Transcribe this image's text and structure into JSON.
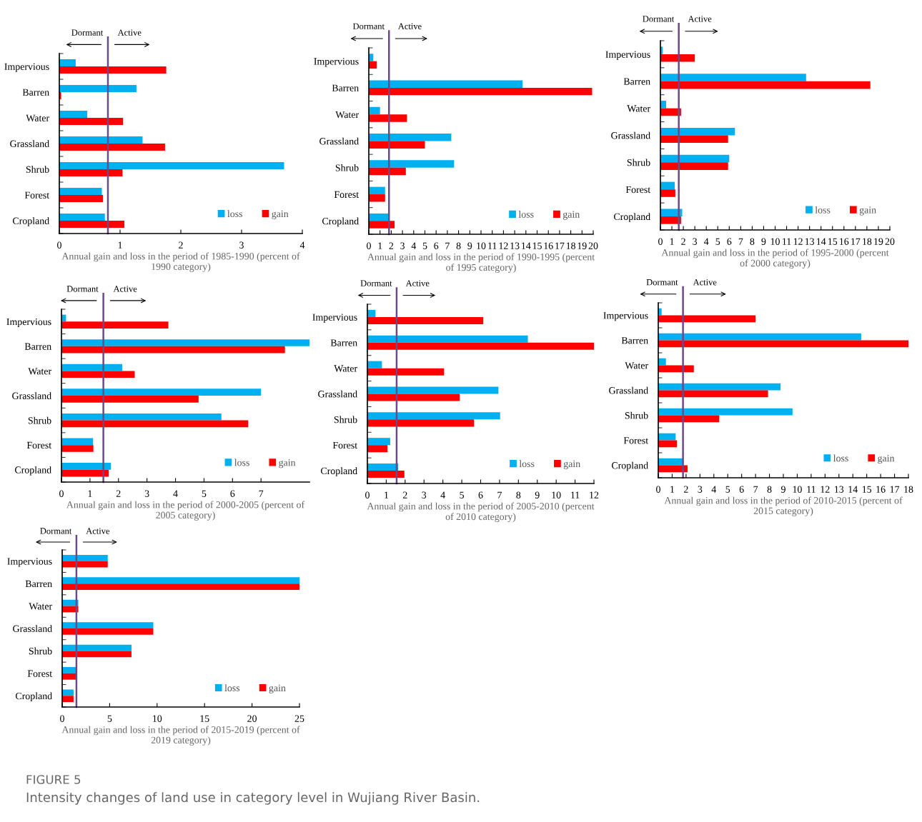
{
  "chart_data": [
    {
      "type": "bar",
      "orientation": "horizontal",
      "categories": [
        "Impervious",
        "Barren",
        "Water",
        "Grassland",
        "Shrub",
        "Forest",
        "Cropland"
      ],
      "series": [
        {
          "name": "loss",
          "color": "#00b0f0",
          "values": [
            0.27,
            1.27,
            0.46,
            1.37,
            3.7,
            0.7,
            0.75
          ]
        },
        {
          "name": "gain",
          "color": "#ff0000",
          "values": [
            1.76,
            0.03,
            1.05,
            1.74,
            1.04,
            0.72,
            1.07
          ]
        }
      ],
      "xlabel": "Annual gain and loss in the period of 1985-1990 (percent of 1990 category)",
      "xlim": [
        0,
        4
      ],
      "xticks": [
        0,
        1,
        2,
        3,
        4
      ],
      "ref_lines": [
        {
          "axis": "x",
          "value": 0.8,
          "color": "#6b4a8a"
        }
      ],
      "annotations": [
        "Dormant",
        "Active"
      ],
      "legend": "bottom right",
      "grid": false
    },
    {
      "type": "bar",
      "orientation": "horizontal",
      "categories": [
        "Impervious",
        "Barren",
        "Water",
        "Grassland",
        "Shrub",
        "Forest",
        "Cropland"
      ],
      "series": [
        {
          "name": "loss",
          "color": "#00b0f0",
          "values": [
            0.4,
            13.7,
            1.0,
            7.35,
            7.6,
            1.45,
            1.75
          ]
        },
        {
          "name": "gain",
          "color": "#ff0000",
          "values": [
            0.7,
            19.9,
            3.4,
            5.0,
            3.3,
            1.45,
            2.3
          ]
        }
      ],
      "xlabel": "Annual gain and loss in the period of 1990-1995 (percent of 1995 category)",
      "xlim": [
        0,
        20
      ],
      "xticks": [
        0,
        1,
        2,
        3,
        4,
        5,
        6,
        7,
        8,
        9,
        10,
        11,
        12,
        13,
        14,
        15,
        16,
        17,
        18,
        19,
        20
      ],
      "ref_lines": [
        {
          "axis": "x",
          "value": 1.8,
          "color": "#6b4a8a"
        }
      ],
      "annotations": [
        "Dormant",
        "Active"
      ],
      "legend": "bottom right",
      "grid": false
    },
    {
      "type": "bar",
      "orientation": "horizontal",
      "categories": [
        "Impervious",
        "Barren",
        "Water",
        "Grassland",
        "Shrub",
        "Forest",
        "Cropland"
      ],
      "series": [
        {
          "name": "loss",
          "color": "#00b0f0",
          "values": [
            0.2,
            12.7,
            0.5,
            6.5,
            6.0,
            1.25,
            1.9
          ]
        },
        {
          "name": "gain",
          "color": "#ff0000",
          "values": [
            3.0,
            18.3,
            1.8,
            5.9,
            5.9,
            1.3,
            1.8
          ]
        }
      ],
      "xlabel": "Annual gain and loss in the period of 1995-2000 (percent of 2000 category)",
      "xlim": [
        0,
        20
      ],
      "xticks": [
        0,
        1,
        2,
        3,
        4,
        5,
        6,
        7,
        8,
        9,
        10,
        11,
        12,
        13,
        14,
        15,
        16,
        17,
        18,
        19,
        20
      ],
      "ref_lines": [
        {
          "axis": "x",
          "value": 1.6,
          "color": "#6b4a8a"
        }
      ],
      "annotations": [
        "Dormant",
        "Active"
      ],
      "legend": "bottom right",
      "grid": false
    },
    {
      "type": "bar",
      "orientation": "horizontal",
      "categories": [
        "Impervious",
        "Barren",
        "Water",
        "Grassland",
        "Shrub",
        "Forest",
        "Cropland"
      ],
      "series": [
        {
          "name": "loss",
          "color": "#00b0f0",
          "values": [
            0.16,
            8.7,
            2.13,
            7.0,
            5.61,
            1.11,
            1.73
          ]
        },
        {
          "name": "gain",
          "color": "#ff0000",
          "values": [
            3.75,
            7.84,
            2.57,
            4.81,
            6.55,
            1.12,
            1.66
          ]
        }
      ],
      "xlabel": "Annual gain and loss in the period of 2000-2005 (percent of 2005 category)",
      "xlim": [
        0,
        8.7
      ],
      "xticks": [
        0,
        1,
        2,
        3,
        4,
        5,
        6,
        7
      ],
      "ref_lines": [
        {
          "axis": "x",
          "value": 1.47,
          "color": "#6b4a8a"
        }
      ],
      "annotations": [
        "Dormant",
        "Active"
      ],
      "legend": "bottom right",
      "grid": false
    },
    {
      "type": "bar",
      "orientation": "horizontal",
      "categories": [
        "Impervious",
        "Barren",
        "Water",
        "Grassland",
        "Shrub",
        "Forest",
        "Cropland"
      ],
      "series": [
        {
          "name": "loss",
          "color": "#00b0f0",
          "values": [
            0.43,
            8.5,
            0.77,
            6.94,
            7.03,
            1.21,
            1.63
          ]
        },
        {
          "name": "gain",
          "color": "#ff0000",
          "values": [
            6.14,
            12.0,
            4.06,
            4.89,
            5.65,
            1.07,
            1.96
          ]
        }
      ],
      "xlabel": "Annual gain and loss in the period of 2005-2010 (percent of 2010 category)",
      "xlim": [
        0,
        12
      ],
      "xticks": [
        0,
        1,
        2,
        3,
        4,
        5,
        6,
        7,
        8,
        9,
        10,
        11,
        12
      ],
      "ref_lines": [
        {
          "axis": "x",
          "value": 1.55,
          "color": "#6b4a8a"
        }
      ],
      "annotations": [
        "Dormant",
        "Active"
      ],
      "legend": "bottom right",
      "grid": false
    },
    {
      "type": "bar",
      "orientation": "horizontal",
      "categories": [
        "Impervious",
        "Barren",
        "Water",
        "Grassland",
        "Shrub",
        "Forest",
        "Cropland"
      ],
      "series": [
        {
          "name": "loss",
          "color": "#00b0f0",
          "values": [
            0.24,
            14.6,
            0.55,
            8.8,
            9.66,
            1.25,
            1.75
          ]
        },
        {
          "name": "gain",
          "color": "#ff0000",
          "values": [
            7.0,
            18.0,
            2.56,
            7.9,
            4.39,
            1.34,
            2.11
          ]
        }
      ],
      "xlabel": "Annual gain and loss in the period of 2010-2015 (percent of 2015 category)",
      "xlim": [
        0,
        18
      ],
      "xticks": [
        0,
        1,
        2,
        3,
        4,
        5,
        6,
        7,
        8,
        9,
        10,
        11,
        12,
        13,
        14,
        15,
        16,
        17,
        18
      ],
      "ref_lines": [
        {
          "axis": "x",
          "value": 1.78,
          "color": "#6b4a8a"
        }
      ],
      "annotations": [
        "Dormant",
        "Active"
      ],
      "legend": "bottom right",
      "grid": false
    },
    {
      "type": "bar",
      "orientation": "horizontal",
      "categories": [
        "Impervious",
        "Barren",
        "Water",
        "Grassland",
        "Shrub",
        "Forest",
        "Cropland"
      ],
      "series": [
        {
          "name": "loss",
          "color": "#00b0f0",
          "values": [
            4.8,
            25.0,
            1.7,
            9.6,
            7.3,
            1.5,
            1.2
          ]
        },
        {
          "name": "gain",
          "color": "#ff0000",
          "values": [
            4.8,
            25.0,
            1.7,
            9.6,
            7.3,
            1.5,
            1.2
          ]
        }
      ],
      "xlabel": "Annual gain and loss in the period of 2015-2019 (percent of 2019 category)",
      "xlim": [
        0,
        25
      ],
      "xticks": [
        0,
        5,
        10,
        15,
        20,
        25
      ],
      "ref_lines": [
        {
          "axis": "x",
          "value": 1.5,
          "color": "#6b4a8a"
        }
      ],
      "annotations": [
        "Dormant",
        "Active",
        "FIGURE 5",
        "Intensity changes of land use in category level in Wujiang River Basin."
      ],
      "legend": "bottom right",
      "grid": false
    }
  ]
}
